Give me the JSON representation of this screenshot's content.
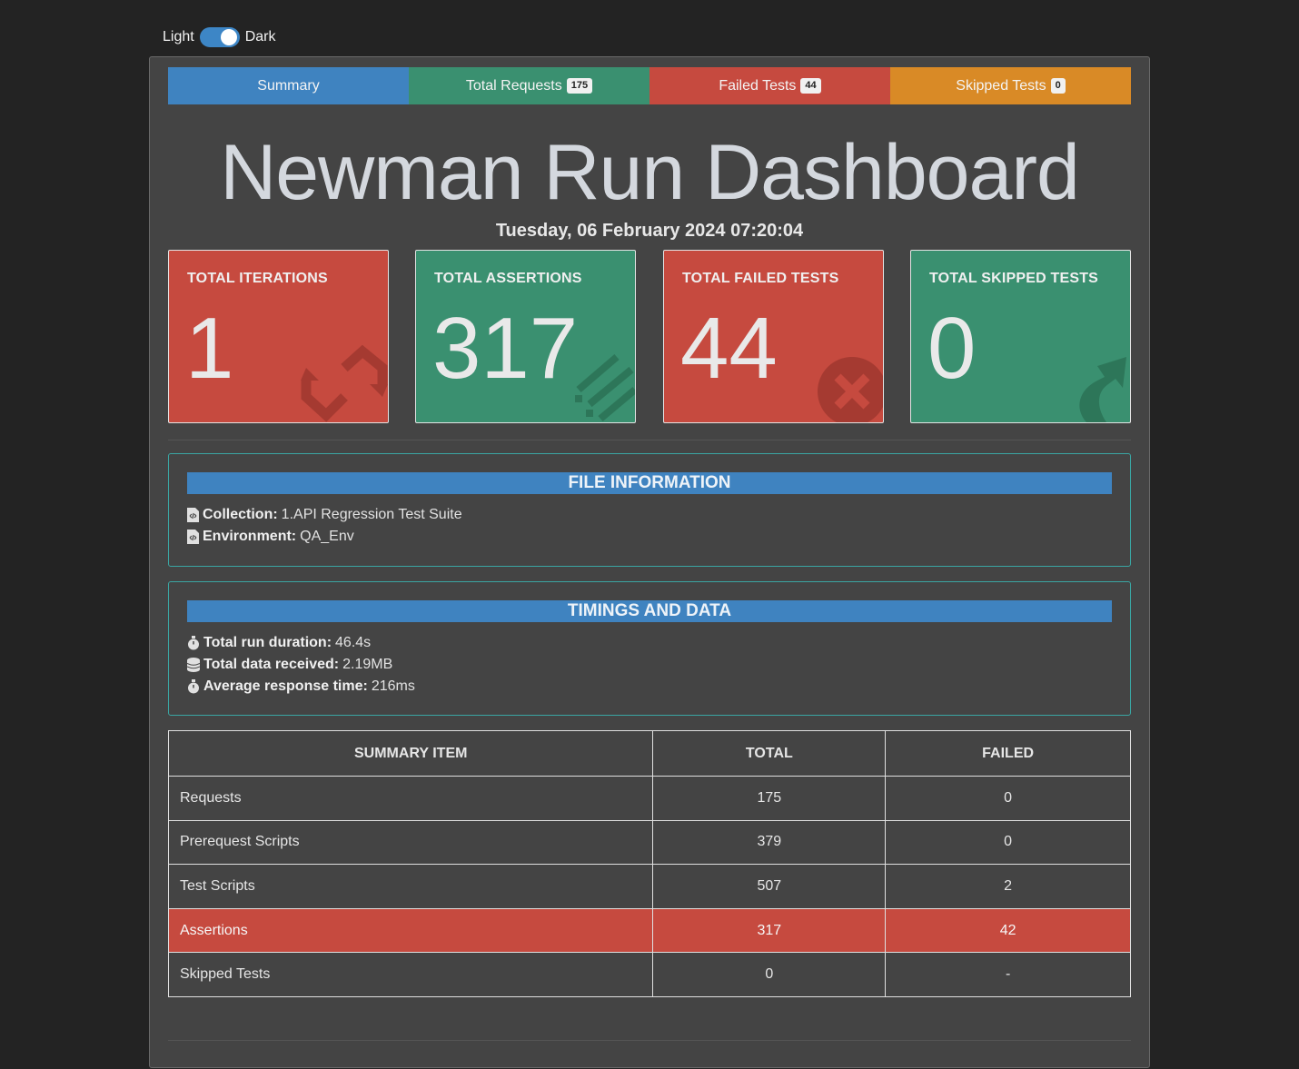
{
  "theme_toggle": {
    "light_label": "Light",
    "dark_label": "Dark",
    "state": "dark"
  },
  "tabs": [
    {
      "label": "Summary",
      "badge": ""
    },
    {
      "label": "Total Requests",
      "badge": "175"
    },
    {
      "label": "Failed Tests",
      "badge": "44"
    },
    {
      "label": "Skipped Tests",
      "badge": "0"
    }
  ],
  "header": {
    "title": "Newman Run Dashboard",
    "datetime": "Tuesday, 06 February 2024 07:20:04"
  },
  "cards": [
    {
      "label": "TOTAL ITERATIONS",
      "value": "1",
      "color": "#c64a3f",
      "icon": "retweet-icon"
    },
    {
      "label": "TOTAL ASSERTIONS",
      "value": "317",
      "color": "#3a9070",
      "icon": "check-list-icon"
    },
    {
      "label": "TOTAL FAILED TESTS",
      "value": "44",
      "color": "#c64a3f",
      "icon": "times-circle-icon"
    },
    {
      "label": "TOTAL SKIPPED TESTS",
      "value": "0",
      "color": "#3a9070",
      "icon": "share-arrow-icon"
    }
  ],
  "file_info": {
    "heading": "FILE INFORMATION",
    "collection_label": "Collection:",
    "collection_value": "1.API Regression Test Suite",
    "environment_label": "Environment:",
    "environment_value": "QA_Env"
  },
  "timings": {
    "heading": "TIMINGS AND DATA",
    "duration_label": "Total run duration:",
    "duration_value": "46.4s",
    "data_label": "Total data received:",
    "data_value": "2.19MB",
    "response_label": "Average response time:",
    "response_value": "216ms"
  },
  "summary_table": {
    "headers": [
      "SUMMARY ITEM",
      "TOTAL",
      "FAILED"
    ],
    "rows": [
      {
        "item": "Requests",
        "total": "175",
        "failed": "0"
      },
      {
        "item": "Prerequest Scripts",
        "total": "379",
        "failed": "0"
      },
      {
        "item": "Test Scripts",
        "total": "507",
        "failed": "2"
      },
      {
        "item": "Assertions",
        "total": "317",
        "failed": "42"
      },
      {
        "item": "Skipped Tests",
        "total": "0",
        "failed": "-"
      }
    ]
  },
  "colors": {
    "page_bg": "#232323",
    "panel_bg": "#444444",
    "blue": "#3f83c0",
    "green": "#3a9070",
    "red": "#c64a3f",
    "orange": "#d98a26"
  }
}
